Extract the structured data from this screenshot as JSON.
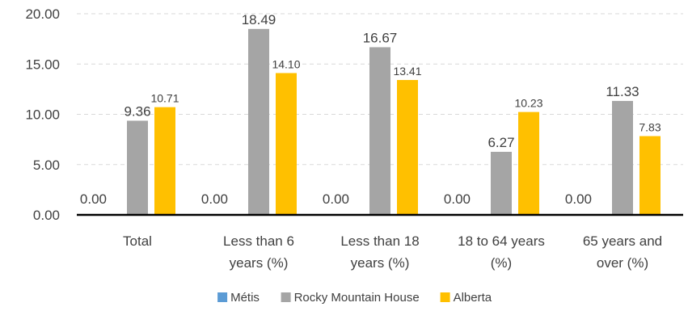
{
  "chart_data": {
    "type": "bar",
    "categories": [
      [
        "Total"
      ],
      [
        "Less than 6",
        "years (%)"
      ],
      [
        "Less than 18",
        "years (%)"
      ],
      [
        "18 to 64 years",
        "(%)"
      ],
      [
        "65 years and",
        "over (%)"
      ]
    ],
    "series": [
      {
        "name": "Métis",
        "color": "#5b9bd5",
        "values": [
          0.0,
          0.0,
          0.0,
          0.0,
          0.0
        ]
      },
      {
        "name": "Rocky Mountain House",
        "color": "#a5a5a5",
        "values": [
          9.36,
          18.49,
          16.67,
          6.27,
          11.33
        ]
      },
      {
        "name": "Alberta",
        "color": "#ffc000",
        "values": [
          10.71,
          14.1,
          13.41,
          10.23,
          7.83
        ]
      }
    ],
    "y_ticks": [
      "0.00",
      "5.00",
      "10.00",
      "15.00",
      "20.00"
    ],
    "ylim": [
      0,
      20
    ],
    "grid": true,
    "legend_position": "bottom"
  }
}
